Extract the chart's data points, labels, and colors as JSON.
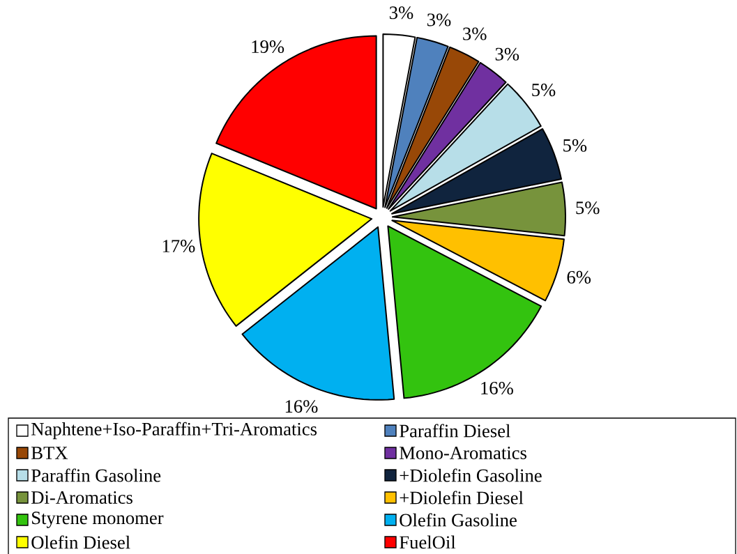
{
  "chart_data": {
    "type": "pie",
    "categories": [
      "Naphtene+Iso-Paraffin+Tri-Aromatics",
      "Paraffin Diesel",
      "BTX",
      "Mono-Aromatics",
      "Paraffin Gasoline",
      "+Diolefin Gasoline",
      "Di-Aromatics",
      "+Diolefin Diesel",
      "Styrene monomer",
      "Olefin Gasoline",
      "Olefin Diesel",
      "FuelOil"
    ],
    "values": [
      3,
      3,
      3,
      3,
      5,
      5,
      5,
      6,
      16,
      16,
      17,
      19
    ],
    "value_labels": [
      "3%",
      "3%",
      "3%",
      "3%",
      "5%",
      "5%",
      "5%",
      "6%",
      "16%",
      "16%",
      "17%",
      "19%"
    ],
    "colors": [
      "#ffffff",
      "#4f81bd",
      "#984807",
      "#7030a0",
      "#b7dee8",
      "#10243e",
      "#77933c",
      "#ffc000",
      "#33c30f",
      "#00b0f0",
      "#ffff00",
      "#ff0000"
    ],
    "legend": "bottom"
  }
}
